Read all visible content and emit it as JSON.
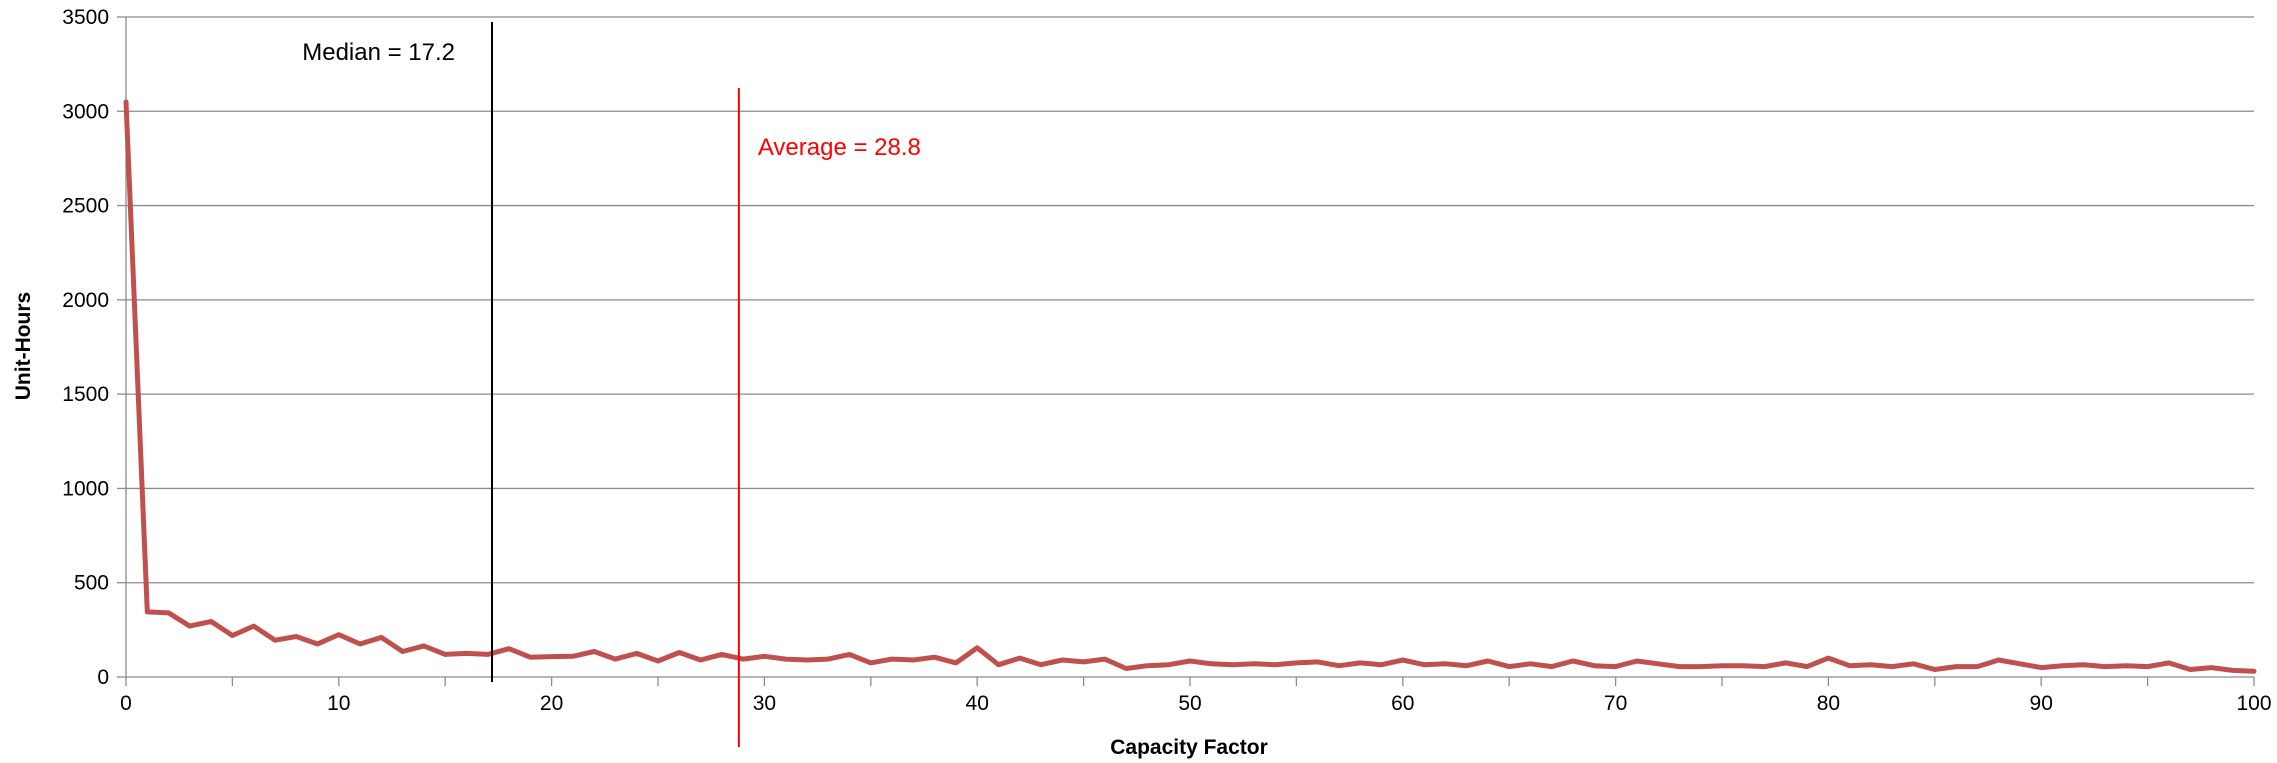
{
  "chart_data": {
    "type": "line",
    "title": "",
    "xlabel": "Capacity Factor",
    "ylabel": "Unit-Hours",
    "xlim": [
      0,
      100
    ],
    "ylim": [
      0,
      3500
    ],
    "x_ticks": [
      0,
      10,
      20,
      30,
      40,
      50,
      60,
      70,
      80,
      90,
      100
    ],
    "y_ticks": [
      0,
      500,
      1000,
      1500,
      2000,
      2500,
      3000,
      3500
    ],
    "grid": "horizontal",
    "legend": "none",
    "series": [
      {
        "color": "#c0504d",
        "x": [
          0,
          1,
          2,
          3,
          4,
          5,
          6,
          7,
          8,
          9,
          10,
          11,
          12,
          13,
          14,
          15,
          16,
          17,
          18,
          19,
          20,
          21,
          22,
          23,
          24,
          25,
          26,
          27,
          28,
          29,
          30,
          31,
          32,
          33,
          34,
          35,
          36,
          37,
          38,
          39,
          40,
          41,
          42,
          43,
          44,
          45,
          46,
          47,
          48,
          49,
          50,
          51,
          52,
          53,
          54,
          55,
          56,
          57,
          58,
          59,
          60,
          61,
          62,
          63,
          64,
          65,
          66,
          67,
          68,
          69,
          70,
          71,
          72,
          73,
          74,
          75,
          76,
          77,
          78,
          79,
          80,
          81,
          82,
          83,
          84,
          85,
          86,
          87,
          88,
          89,
          90,
          91,
          92,
          93,
          94,
          95,
          96,
          97,
          98,
          99,
          100
        ],
        "values": [
          3050,
          345,
          340,
          270,
          295,
          220,
          270,
          195,
          215,
          175,
          225,
          175,
          210,
          135,
          165,
          120,
          125,
          120,
          150,
          105,
          108,
          110,
          135,
          95,
          125,
          85,
          130,
          90,
          120,
          95,
          110,
          95,
          90,
          95,
          120,
          75,
          95,
          90,
          105,
          75,
          155,
          65,
          100,
          65,
          90,
          80,
          95,
          45,
          60,
          65,
          85,
          70,
          65,
          70,
          65,
          75,
          80,
          60,
          75,
          65,
          90,
          65,
          70,
          60,
          85,
          55,
          70,
          55,
          85,
          60,
          55,
          85,
          70,
          55,
          55,
          60,
          60,
          55,
          75,
          55,
          100,
          60,
          65,
          55,
          70,
          40,
          55,
          55,
          90,
          70,
          50,
          60,
          65,
          55,
          60,
          55,
          75,
          40,
          50,
          35,
          30
        ]
      }
    ],
    "annotations": [
      {
        "label": "Median = 17.2",
        "x": 17.2,
        "color": "#000000"
      },
      {
        "label": "Average = 28.8",
        "x": 28.8,
        "color": "#ff0000"
      }
    ]
  }
}
